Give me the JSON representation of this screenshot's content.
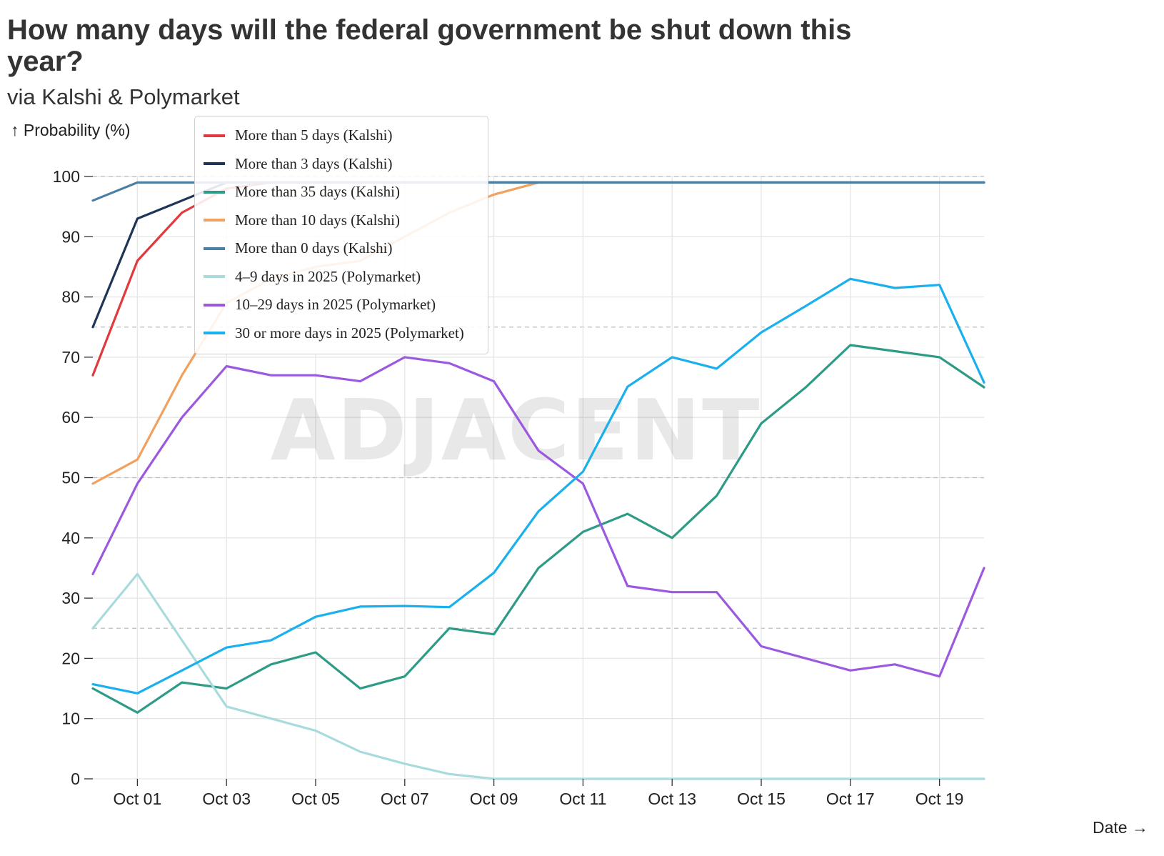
{
  "header": {
    "title": "How many days will the federal government be shut down this year?",
    "subtitle": "via Kalshi & Polymarket"
  },
  "watermark": "ADJACENT",
  "chart_data": {
    "type": "line",
    "title": "How many days will the federal government be shut down this year?",
    "subtitle": "via Kalshi & Polymarket",
    "ylabel": "↑ Probability (%)",
    "xlabel": "Date →",
    "ylim": [
      0,
      100
    ],
    "yticks": [
      0,
      10,
      20,
      30,
      40,
      50,
      60,
      70,
      80,
      90,
      100
    ],
    "x": [
      "Sep 30",
      "Oct 01",
      "Oct 02",
      "Oct 03",
      "Oct 04",
      "Oct 05",
      "Oct 06",
      "Oct 07",
      "Oct 08",
      "Oct 09",
      "Oct 10",
      "Oct 11",
      "Oct 12",
      "Oct 13",
      "Oct 14",
      "Oct 15",
      "Oct 16",
      "Oct 17",
      "Oct 18",
      "Oct 19",
      "Oct 20"
    ],
    "xtick_labels": [
      "Oct 01",
      "Oct 03",
      "Oct 05",
      "Oct 07",
      "Oct 09",
      "Oct 11",
      "Oct 13",
      "Oct 15",
      "Oct 17",
      "Oct 19"
    ],
    "grid": true,
    "legend_position": "top-left",
    "series": [
      {
        "name": "More than 5 days (Kalshi)",
        "color": "#e03a3e",
        "values": [
          67,
          86,
          94,
          98,
          99,
          99,
          99,
          99,
          99,
          99,
          99,
          99,
          99,
          99,
          99,
          99,
          99,
          99,
          99,
          99,
          99
        ]
      },
      {
        "name": "More than 3 days (Kalshi)",
        "color": "#1f3557",
        "values": [
          75,
          93,
          96,
          99,
          99,
          99,
          99,
          99,
          99,
          99,
          99,
          99,
          99,
          99,
          99,
          99,
          99,
          99,
          99,
          99,
          99
        ]
      },
      {
        "name": "More than 35 days (Kalshi)",
        "color": "#2e9b87",
        "values": [
          15,
          11,
          16,
          15,
          19,
          21,
          15,
          17,
          25,
          24,
          35,
          41,
          44,
          40,
          47,
          59,
          65,
          72,
          71,
          70,
          65
        ]
      },
      {
        "name": "More than 10 days (Kalshi)",
        "color": "#f2a05e",
        "values": [
          49,
          53,
          67,
          79,
          83,
          85,
          86,
          90,
          94,
          97,
          99,
          99,
          99,
          99,
          99,
          99,
          99,
          99,
          99,
          99,
          99
        ]
      },
      {
        "name": "More than 0 days (Kalshi)",
        "color": "#4a7fa6",
        "values": [
          96,
          99,
          99,
          99,
          99,
          99,
          99,
          99,
          99,
          99,
          99,
          99,
          99,
          99,
          99,
          99,
          99,
          99,
          99,
          99,
          99
        ]
      },
      {
        "name": "4–9 days in 2025 (Polymarket)",
        "color": "#a9dbdd",
        "values": [
          25,
          34,
          23,
          12,
          10,
          8,
          4.5,
          2.5,
          0.8,
          0,
          0,
          0,
          0,
          0,
          0,
          0,
          0,
          0,
          0,
          0,
          0
        ]
      },
      {
        "name": "10–29 days in 2025 (Polymarket)",
        "color": "#9b59e0",
        "values": [
          34,
          49,
          60,
          68.5,
          67,
          67,
          66,
          70,
          69,
          66,
          54.5,
          49,
          32,
          31,
          31,
          22,
          20,
          18,
          19,
          17,
          35
        ]
      },
      {
        "name": "30 or more days in 2025 (Polymarket)",
        "color": "#1ab0ee",
        "values": [
          15.7,
          14.2,
          18,
          21.8,
          23,
          26.9,
          28.6,
          28.7,
          28.5,
          34.2,
          44.4,
          51,
          65.1,
          70,
          68.1,
          74.1,
          78.5,
          83,
          81.5,
          82,
          65.8
        ]
      }
    ]
  }
}
